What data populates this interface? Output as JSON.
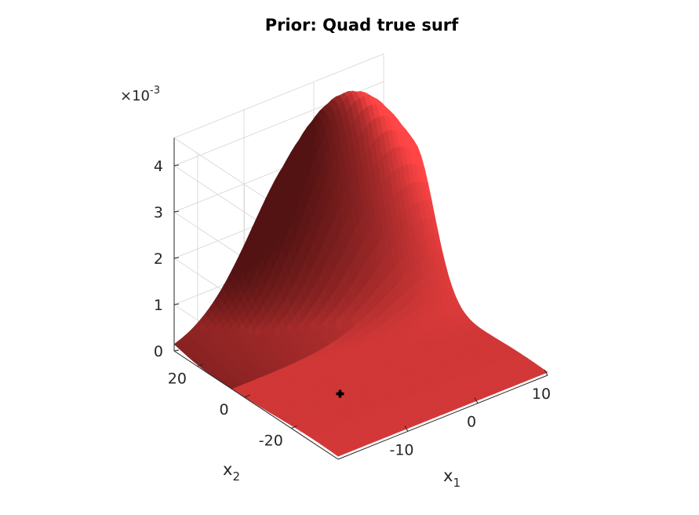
{
  "chart_data": {
    "type": "surface",
    "title": "Prior: Quad true surf",
    "xlabel": {
      "base": "x",
      "sub": "1"
    },
    "ylabel": {
      "base": "x",
      "sub": "2"
    },
    "zlabel": "",
    "z_exponent": {
      "base": "×10",
      "sup": "-3"
    },
    "xlim": [
      -20,
      10
    ],
    "ylim": [
      -40,
      30
    ],
    "zlim": [
      0,
      4.6
    ],
    "xticks": [
      {
        "value": -10,
        "label": "-10"
      },
      {
        "value": 0,
        "label": "0"
      },
      {
        "value": 10,
        "label": "10"
      }
    ],
    "yticks": [
      {
        "value": -20,
        "label": "-20"
      },
      {
        "value": 0,
        "label": "0"
      },
      {
        "value": 20,
        "label": "20"
      }
    ],
    "zticks": [
      {
        "value": 0,
        "label": "0"
      },
      {
        "value": 1,
        "label": "1"
      },
      {
        "value": 2,
        "label": "2"
      },
      {
        "value": 3,
        "label": "3"
      },
      {
        "value": 4,
        "label": "4"
      }
    ],
    "grid": true,
    "surface_color": "#d42a2a",
    "peak": {
      "x1": 2.5,
      "x2": 22,
      "z": 4.5
    },
    "marker": {
      "x1": -11,
      "x2": -14,
      "z": 0,
      "color": "#000000"
    }
  }
}
